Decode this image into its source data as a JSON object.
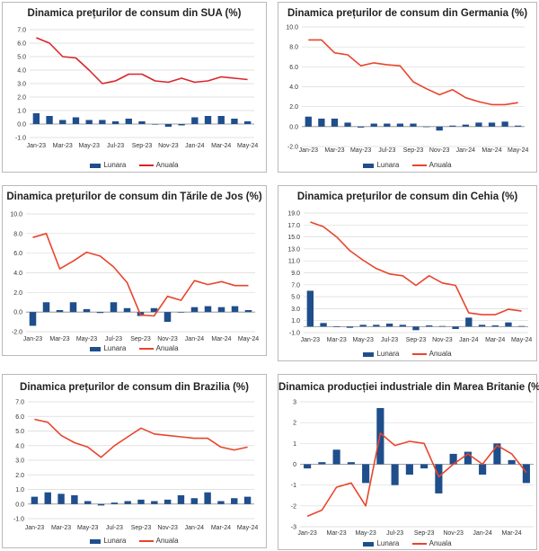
{
  "legend": {
    "bar": "Lunara",
    "line": "Anuala"
  },
  "colors": {
    "bar": "#1f4e8c",
    "line_usa": "#d9262b",
    "line": "#e8452c",
    "grid": "#d9d9d9",
    "axis": "#8c8c8c"
  },
  "chart_data": [
    {
      "type": "bar+line",
      "title": "Dinamica prețurilor de consum din SUA (%)",
      "x": [
        "Jan-23",
        "Feb-23",
        "Mar-23",
        "Apr-23",
        "May-23",
        "Jun-23",
        "Jul-23",
        "Aug-23",
        "Sep-23",
        "Oct-23",
        "Nov-23",
        "Dec-23",
        "Jan-24",
        "Feb-24",
        "Mar-24",
        "Apr-24",
        "May-24"
      ],
      "xticks": [
        "Jan-23",
        "Mar-23",
        "May-23",
        "Jul-23",
        "Sep-23",
        "Nov-23",
        "Jan-24",
        "Mar-24",
        "May-24"
      ],
      "yticks": [
        "-1.0",
        "0.0",
        "1.0",
        "2.0",
        "3.0",
        "4.0",
        "5.0",
        "6.0",
        "7.0"
      ],
      "ylim": [
        -1,
        7
      ],
      "series": [
        {
          "name": "Lunara",
          "kind": "bar",
          "values": [
            0.8,
            0.6,
            0.3,
            0.5,
            0.3,
            0.3,
            0.2,
            0.4,
            0.2,
            0.0,
            -0.2,
            -0.1,
            0.5,
            0.6,
            0.6,
            0.4,
            0.2
          ]
        },
        {
          "name": "Anuala",
          "kind": "line",
          "values": [
            6.4,
            6.0,
            5.0,
            4.9,
            4.0,
            3.0,
            3.2,
            3.7,
            3.7,
            3.2,
            3.1,
            3.4,
            3.1,
            3.2,
            3.5,
            3.4,
            3.3
          ]
        }
      ]
    },
    {
      "type": "bar+line",
      "title": "Dinamica prețurilor de consum din Germania (%)",
      "x": [
        "Jan-23",
        "Feb-23",
        "Mar-23",
        "Apr-23",
        "May-23",
        "Jun-23",
        "Jul-23",
        "Aug-23",
        "Sep-23",
        "Oct-23",
        "Nov-23",
        "Dec-23",
        "Jan-24",
        "Feb-24",
        "Mar-24",
        "Apr-24",
        "May-24"
      ],
      "xticks": [
        "Jan-23",
        "Mar-23",
        "May-23",
        "Jul-23",
        "Sep-23",
        "Nov-23",
        "Jan-24",
        "Mar-24",
        "May-24"
      ],
      "yticks": [
        "-2.0",
        "0.0",
        "2.0",
        "4.0",
        "6.0",
        "8.0",
        "10.0"
      ],
      "ylim": [
        -2,
        10
      ],
      "series": [
        {
          "name": "Lunara",
          "kind": "bar",
          "values": [
            1.0,
            0.8,
            0.8,
            0.4,
            -0.1,
            0.3,
            0.3,
            0.3,
            0.3,
            0.0,
            -0.4,
            0.1,
            0.2,
            0.4,
            0.4,
            0.5,
            0.1
          ]
        },
        {
          "name": "Anuala",
          "kind": "line",
          "values": [
            8.7,
            8.7,
            7.4,
            7.2,
            6.1,
            6.4,
            6.2,
            6.1,
            4.5,
            3.8,
            3.2,
            3.7,
            2.9,
            2.5,
            2.2,
            2.2,
            2.4
          ]
        }
      ]
    },
    {
      "type": "bar+line",
      "title": "Dinamica prețurilor de consum din Țările de Jos (%)",
      "x": [
        "Jan-23",
        "Feb-23",
        "Mar-23",
        "Apr-23",
        "May-23",
        "Jun-23",
        "Jul-23",
        "Aug-23",
        "Sep-23",
        "Oct-23",
        "Nov-23",
        "Dec-23",
        "Jan-24",
        "Feb-24",
        "Mar-24",
        "Apr-24",
        "May-24"
      ],
      "xticks": [
        "Jan-23",
        "Mar-23",
        "May-23",
        "Jul-23",
        "Sep-23",
        "Nov-23",
        "Jan-24",
        "Mar-24",
        "May-24"
      ],
      "yticks": [
        "-2.0",
        "0.0",
        "2.0",
        "4.0",
        "6.0",
        "8.0",
        "10.0"
      ],
      "ylim": [
        -2,
        10
      ],
      "series": [
        {
          "name": "Lunara",
          "kind": "bar",
          "values": [
            -1.4,
            1.0,
            0.2,
            1.0,
            0.3,
            -0.1,
            1.0,
            0.4,
            -0.4,
            0.4,
            -1.0,
            0.0,
            0.5,
            0.6,
            0.5,
            0.6,
            0.2
          ]
        },
        {
          "name": "Anuala",
          "kind": "line",
          "values": [
            7.6,
            8.0,
            4.4,
            5.2,
            6.1,
            5.7,
            4.6,
            3.0,
            -0.3,
            -0.4,
            1.6,
            1.2,
            3.2,
            2.8,
            3.1,
            2.7,
            2.7
          ]
        }
      ]
    },
    {
      "type": "bar+line",
      "title": "Dinamica prețurilor de consum din Cehia (%)",
      "x": [
        "Jan-23",
        "Feb-23",
        "Mar-23",
        "Apr-23",
        "May-23",
        "Jun-23",
        "Jul-23",
        "Aug-23",
        "Sep-23",
        "Oct-23",
        "Nov-23",
        "Dec-23",
        "Jan-24",
        "Feb-24",
        "Mar-24",
        "Apr-24",
        "May-24"
      ],
      "xticks": [
        "Jan-23",
        "Mar-23",
        "May-23",
        "Jul-23",
        "Sep-23",
        "Nov-23",
        "Jan-24",
        "Mar-24",
        "May-24"
      ],
      "yticks": [
        "-1.0",
        "1.0",
        "3.0",
        "5.0",
        "7.0",
        "9.0",
        "11.0",
        "13.0",
        "15.0",
        "17.0",
        "19.0"
      ],
      "ylim": [
        -1,
        19
      ],
      "series": [
        {
          "name": "Lunara",
          "kind": "bar",
          "values": [
            6.0,
            0.6,
            0.0,
            -0.2,
            0.3,
            0.3,
            0.5,
            0.3,
            -0.6,
            0.2,
            0.1,
            -0.4,
            1.5,
            0.3,
            0.2,
            0.7,
            0.1
          ]
        },
        {
          "name": "Anuala",
          "kind": "line",
          "values": [
            17.5,
            16.7,
            15.0,
            12.7,
            11.1,
            9.7,
            8.8,
            8.5,
            6.9,
            8.5,
            7.3,
            6.9,
            2.3,
            2.0,
            2.0,
            2.9,
            2.6
          ]
        }
      ]
    },
    {
      "type": "bar+line",
      "title": "Dinamica prețurilor de consum din Brazilia (%)",
      "x": [
        "Jan-23",
        "Feb-23",
        "Mar-23",
        "Apr-23",
        "May-23",
        "Jun-23",
        "Jul-23",
        "Aug-23",
        "Sep-23",
        "Oct-23",
        "Nov-23",
        "Dec-23",
        "Jan-24",
        "Feb-24",
        "Mar-24",
        "Apr-24",
        "May-24"
      ],
      "xticks": [
        "Jan-23",
        "Mar-23",
        "May-23",
        "Jul-23",
        "Sep-23",
        "Nov-23",
        "Jan-24",
        "Mar-24",
        "May-24"
      ],
      "yticks": [
        "-1.0",
        "0.0",
        "1.0",
        "2.0",
        "3.0",
        "4.0",
        "5.0",
        "6.0",
        "7.0"
      ],
      "ylim": [
        -1,
        7
      ],
      "series": [
        {
          "name": "Lunara",
          "kind": "bar",
          "values": [
            0.5,
            0.8,
            0.7,
            0.6,
            0.2,
            -0.1,
            0.1,
            0.2,
            0.3,
            0.2,
            0.3,
            0.6,
            0.4,
            0.8,
            0.2,
            0.4,
            0.5
          ]
        },
        {
          "name": "Anuala",
          "kind": "line",
          "values": [
            5.8,
            5.6,
            4.7,
            4.2,
            3.9,
            3.2,
            4.0,
            4.6,
            5.2,
            4.8,
            4.7,
            4.6,
            4.5,
            4.5,
            3.9,
            3.7,
            3.9
          ]
        }
      ]
    },
    {
      "type": "bar+line",
      "title": "Dinamica producției industriale din Marea Britanie (%)",
      "x": [
        "Jan-23",
        "Feb-23",
        "Mar-23",
        "Apr-23",
        "May-23",
        "Jun-23",
        "Jul-23",
        "Aug-23",
        "Sep-23",
        "Oct-23",
        "Nov-23",
        "Dec-23",
        "Jan-24",
        "Feb-24",
        "Mar-24",
        "Apr-24"
      ],
      "xticks": [
        "Jan-23",
        "Mar-23",
        "May-23",
        "Jul-23",
        "Sep-23",
        "Nov-23",
        "Jan-24",
        "Mar-24"
      ],
      "yticks": [
        "-3",
        "-2",
        "-1",
        "0",
        "1",
        "2",
        "3"
      ],
      "ylim": [
        -3,
        3
      ],
      "series": [
        {
          "name": "Lunara",
          "kind": "bar",
          "values": [
            -0.2,
            0.1,
            0.7,
            0.1,
            -0.9,
            2.7,
            -1.0,
            -0.5,
            -0.2,
            -1.4,
            0.5,
            0.6,
            -0.5,
            1.0,
            0.2,
            -0.9
          ]
        },
        {
          "name": "Anuala",
          "kind": "line",
          "values": [
            -2.5,
            -2.2,
            -1.1,
            -0.9,
            -2.0,
            1.5,
            0.9,
            1.1,
            1.0,
            -0.6,
            0.0,
            0.5,
            0.0,
            0.9,
            0.5,
            -0.4
          ]
        }
      ]
    }
  ]
}
